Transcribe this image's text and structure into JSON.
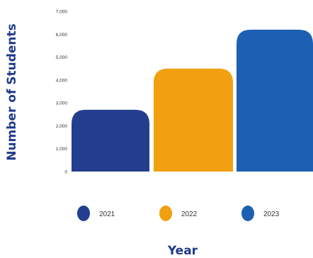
{
  "chart_data": {
    "type": "bar",
    "title": "",
    "xlabel": "Year",
    "ylabel": "Number of Students",
    "ylim": [
      0,
      7000
    ],
    "yticks": [
      0,
      1000,
      2000,
      3000,
      4000,
      5000,
      6000,
      7000
    ],
    "ytick_labels": [
      "0",
      "1,000",
      "2,000",
      "3,000",
      "4,000",
      "5,000",
      "6,000",
      "7,000"
    ],
    "categories": [
      "2021",
      "2022",
      "2023"
    ],
    "values": [
      2700,
      4500,
      6200
    ],
    "colors": [
      "#233e8f",
      "#f1a010",
      "#1d5fb3"
    ],
    "grid": false,
    "legend": {
      "placement": "bottom",
      "marker": "circle",
      "entries": [
        "2021",
        "2022",
        "2023"
      ]
    }
  }
}
